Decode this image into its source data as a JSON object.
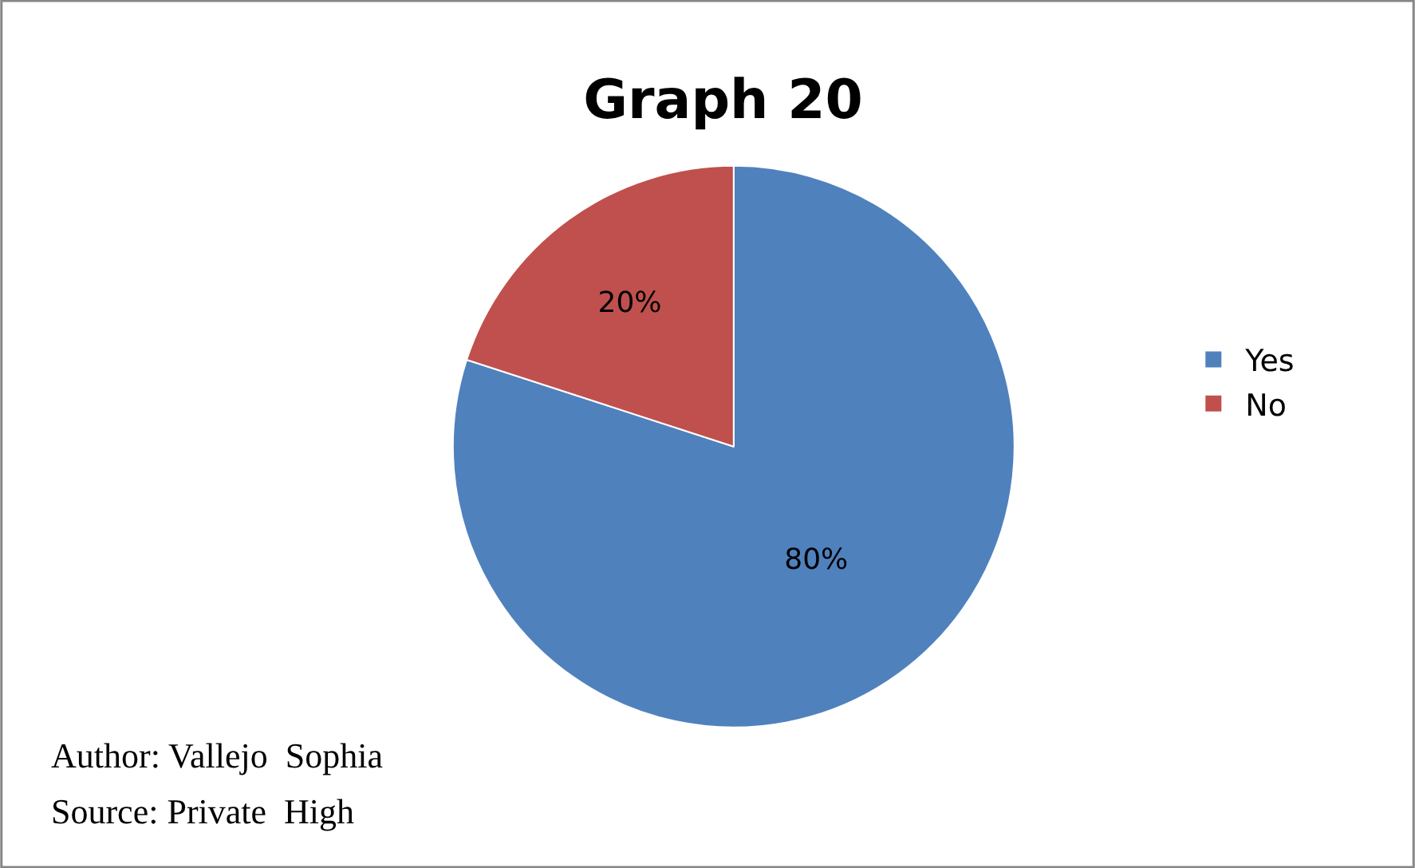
{
  "chart_data": {
    "type": "pie",
    "title": "Graph 20",
    "categories": [
      "Yes",
      "No"
    ],
    "values": [
      80,
      20
    ],
    "colors": [
      "#4f81bd",
      "#c0504d"
    ],
    "value_labels": [
      "80%",
      "20%"
    ],
    "legend": "right",
    "annotations": [
      "Author: Vallejo  Sophia",
      "Source: Private  High"
    ]
  }
}
